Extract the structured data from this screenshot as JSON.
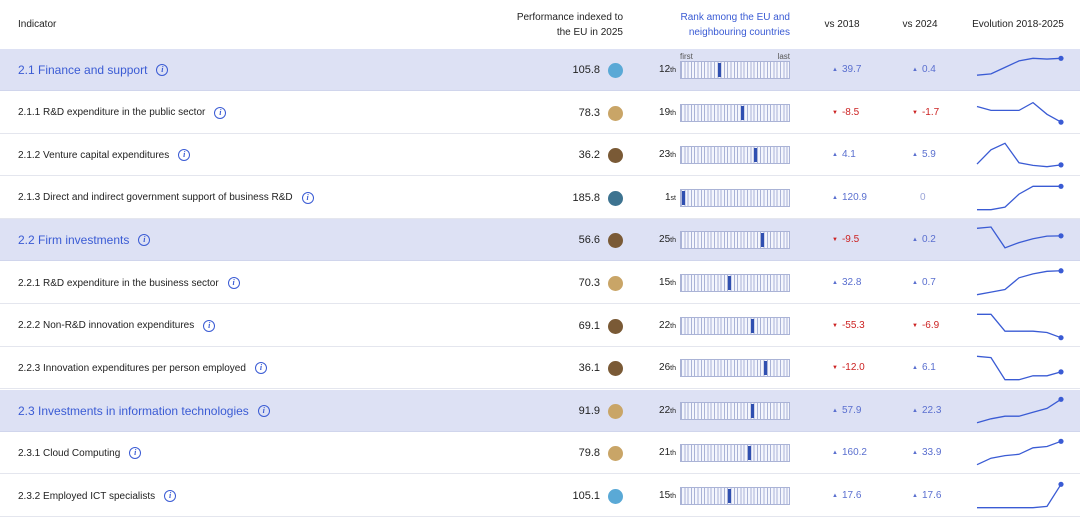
{
  "header": {
    "indicator": "Indicator",
    "performance_line1": "Performance indexed to",
    "performance_line2": "the EU in 2025",
    "rank_line1": "Rank among the EU and",
    "rank_line2": "neighbouring countries",
    "vs2018": "vs 2018",
    "vs2024": "vs 2024",
    "evolution": "Evolution 2018-2025",
    "first": "first",
    "last": "last"
  },
  "colors": {
    "accent": "#3a5bd4",
    "group_bg": "#dde1f4",
    "dot_blue": "#5aa9d6",
    "dot_tan": "#c9a567",
    "dot_brown": "#7a5a36",
    "dot_teal": "#3d7390",
    "down": "#cc2222",
    "up": "#5a6fcf"
  },
  "rows": [
    {
      "label": "2.1 Finance and support",
      "group": true,
      "perf": "105.8",
      "dot": "dot_blue",
      "rank_num": "12",
      "rank_suf": "th",
      "rank_pos": 12,
      "d18": "39.7",
      "d18_dir": "up",
      "d24": "0.4",
      "d24_dir": "up",
      "spark": [
        0.3,
        0.35,
        0.6,
        0.85,
        0.95,
        0.92,
        0.95
      ],
      "show_firstlast": true
    },
    {
      "label": "2.1.1 R&D expenditure in the public sector",
      "group": false,
      "perf": "78.3",
      "dot": "dot_tan",
      "rank_num": "19",
      "rank_suf": "th",
      "rank_pos": 19,
      "d18": "-8.5",
      "d18_dir": "down",
      "d24": "-1.7",
      "d24_dir": "down",
      "spark": [
        0.75,
        0.6,
        0.6,
        0.6,
        0.9,
        0.45,
        0.15
      ]
    },
    {
      "label": "2.1.2 Venture capital expenditures",
      "group": false,
      "perf": "36.2",
      "dot": "dot_brown",
      "rank_num": "23",
      "rank_suf": "th",
      "rank_pos": 23,
      "d18": "4.1",
      "d18_dir": "up",
      "d24": "5.9",
      "d24_dir": "up",
      "spark": [
        0.15,
        0.7,
        0.95,
        0.2,
        0.1,
        0.05,
        0.12
      ]
    },
    {
      "label": "2.1.3 Direct and indirect government support of business R&D",
      "group": false,
      "perf": "185.8",
      "dot": "dot_teal",
      "rank_num": "1",
      "rank_suf": "st",
      "rank_pos": 1,
      "d18": "120.9",
      "d18_dir": "up",
      "d24": "0",
      "d24_dir": "zero",
      "spark": [
        0.05,
        0.05,
        0.15,
        0.65,
        0.95,
        0.95,
        0.95
      ]
    },
    {
      "label": "2.2 Firm investments",
      "group": true,
      "perf": "56.6",
      "dot": "dot_brown",
      "rank_num": "25",
      "rank_suf": "th",
      "rank_pos": 25,
      "d18": "-9.5",
      "d18_dir": "down",
      "d24": "0.2",
      "d24_dir": "up",
      "spark": [
        0.95,
        1.0,
        0.2,
        0.4,
        0.55,
        0.65,
        0.66
      ]
    },
    {
      "label": "2.2.1 R&D expenditure in the business sector",
      "group": false,
      "perf": "70.3",
      "dot": "dot_tan",
      "rank_num": "15",
      "rank_suf": "th",
      "rank_pos": 15,
      "d18": "32.8",
      "d18_dir": "up",
      "d24": "0.7",
      "d24_dir": "up",
      "spark": [
        0.05,
        0.15,
        0.25,
        0.7,
        0.85,
        0.95,
        0.97
      ]
    },
    {
      "label": "2.2.2 Non-R&D innovation expenditures",
      "group": false,
      "perf": "69.1",
      "dot": "dot_brown",
      "rank_num": "22",
      "rank_suf": "th",
      "rank_pos": 22,
      "d18": "-55.3",
      "d18_dir": "down",
      "d24": "-6.9",
      "d24_dir": "down",
      "spark": [
        0.95,
        0.95,
        0.3,
        0.3,
        0.3,
        0.25,
        0.05
      ]
    },
    {
      "label": "2.2.3 Innovation expenditures per person employed",
      "group": false,
      "perf": "36.1",
      "dot": "dot_brown",
      "rank_num": "26",
      "rank_suf": "th",
      "rank_pos": 26,
      "d18": "-12.0",
      "d18_dir": "down",
      "d24": "6.1",
      "d24_dir": "up",
      "spark": [
        0.95,
        0.9,
        0.05,
        0.05,
        0.2,
        0.2,
        0.35
      ]
    },
    {
      "label": "2.3 Investments in information technologies",
      "group": true,
      "perf": "91.9",
      "dot": "dot_tan",
      "rank_num": "22",
      "rank_suf": "th",
      "rank_pos": 22,
      "d18": "57.9",
      "d18_dir": "up",
      "d24": "22.3",
      "d24_dir": "up",
      "spark": [
        0.05,
        0.2,
        0.3,
        0.3,
        0.45,
        0.6,
        0.95
      ]
    },
    {
      "label": "2.3.1 Cloud Computing",
      "group": false,
      "perf": "79.8",
      "dot": "dot_tan",
      "rank_num": "21",
      "rank_suf": "th",
      "rank_pos": 21,
      "d18": "160.2",
      "d18_dir": "up",
      "d24": "33.9",
      "d24_dir": "up",
      "spark": [
        0.05,
        0.3,
        0.4,
        0.45,
        0.7,
        0.75,
        0.95
      ]
    },
    {
      "label": "2.3.2 Employed ICT specialists",
      "group": false,
      "perf": "105.1",
      "dot": "dot_blue",
      "rank_num": "15",
      "rank_suf": "th",
      "rank_pos": 15,
      "d18": "17.6",
      "d18_dir": "up",
      "d24": "17.6",
      "d24_dir": "up",
      "spark": [
        0.05,
        0.05,
        0.05,
        0.05,
        0.05,
        0.1,
        0.95
      ]
    }
  ],
  "rank_total": 32
}
